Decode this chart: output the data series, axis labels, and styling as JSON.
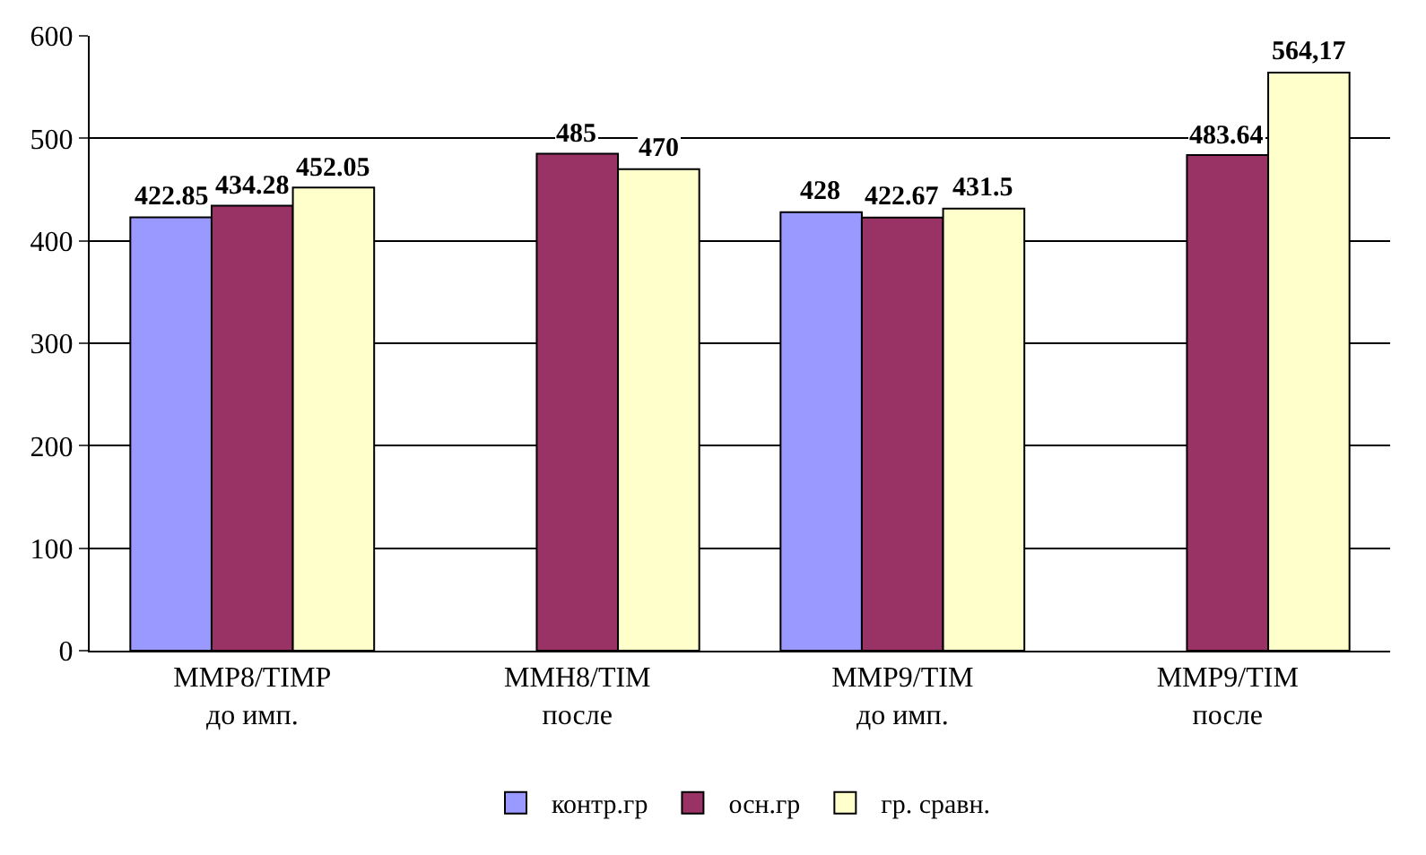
{
  "chart_data": {
    "type": "bar",
    "categories": [
      "MMP8/TIMP до имп.",
      "MMH8/TIM после",
      "MMP9/TIM до имп.",
      "MMP9/TIM после"
    ],
    "series": [
      {
        "name": "контр.гр",
        "color": "#9999ff",
        "values": [
          422.85,
          null,
          428,
          null
        ],
        "value_labels": [
          "422.85",
          null,
          "428",
          null
        ]
      },
      {
        "name": "осн.гр",
        "color": "#993366",
        "values": [
          434.28,
          485,
          422.67,
          483.64
        ],
        "value_labels": [
          "434.28",
          "485",
          "422.67",
          "483.64"
        ]
      },
      {
        "name": "гр. сравн.",
        "color": "#ffffcc",
        "values": [
          452.05,
          470,
          431.5,
          564.17
        ],
        "value_labels": [
          "452.05",
          "470",
          "431.5",
          "564,17"
        ]
      }
    ],
    "ylim": [
      0,
      600
    ],
    "yticks": [
      0,
      100,
      200,
      300,
      400,
      500,
      600
    ],
    "grid": "y",
    "legend": "bottom"
  }
}
